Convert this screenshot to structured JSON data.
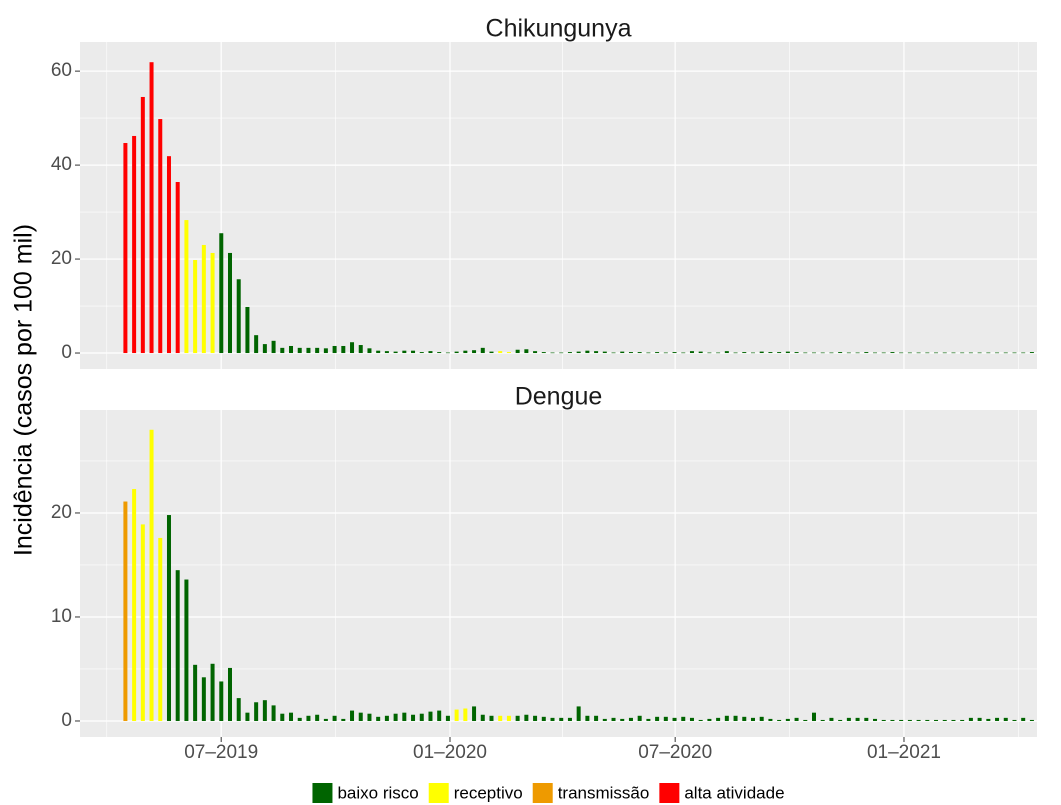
{
  "chart_data": {
    "type": "faceted-bar",
    "ylabel": "Incidência (casos por 100 mil)",
    "legend": [
      {
        "name": "baixo risco",
        "color": "#006400"
      },
      {
        "name": "receptivo",
        "color": "#ffff00"
      },
      {
        "name": "transmissão",
        "color": "#ee9a00"
      },
      {
        "name": "alta atividade",
        "color": "#ff0000"
      }
    ],
    "x": [
      2019.285,
      2019.3042,
      2019.3234,
      2019.3426,
      2019.3618,
      2019.381,
      2019.4002,
      2019.4194,
      2019.4386,
      2019.4578,
      2019.477,
      2019.4962,
      2019.5154,
      2019.5346,
      2019.5538,
      2019.573,
      2019.5922,
      2019.6114,
      2019.6306,
      2019.6498,
      2019.669,
      2019.6882,
      2019.7074,
      2019.7266,
      2019.7458,
      2019.765,
      2019.7842,
      2019.8034,
      2019.8226,
      2019.8418,
      2019.861,
      2019.8802,
      2019.8994,
      2019.9186,
      2019.9378,
      2019.957,
      2019.9762,
      2019.9954,
      2020.0146,
      2020.0338,
      2020.053,
      2020.0722,
      2020.0914,
      2020.1106,
      2020.1298,
      2020.149,
      2020.1682,
      2020.1874,
      2020.2066,
      2020.2258,
      2020.245,
      2020.2642,
      2020.2834,
      2020.3026,
      2020.3218,
      2020.341,
      2020.3602,
      2020.3794,
      2020.3986,
      2020.4178,
      2020.437,
      2020.4562,
      2020.4754,
      2020.4946,
      2020.5138,
      2020.533,
      2020.5522,
      2020.5714,
      2020.5906,
      2020.6098,
      2020.629,
      2020.6482,
      2020.6674,
      2020.6866,
      2020.7058,
      2020.725,
      2020.7442,
      2020.7634,
      2020.7826,
      2020.8018,
      2020.821,
      2020.8402,
      2020.8594,
      2020.8786,
      2020.8978,
      2020.917,
      2020.9362,
      2020.9554,
      2020.9746,
      2020.9938,
      2021.013,
      2021.0322,
      2021.0514,
      2021.0706,
      2021.0898,
      2021.109,
      2021.1282,
      2021.1474,
      2021.1666,
      2021.1858,
      2021.205,
      2021.2242,
      2021.2434,
      2021.2626,
      2021.2818
    ],
    "xlim": [
      2019.185,
      2021.293
    ],
    "xticks": [
      {
        "value": 2019.496,
        "label": "07–2019"
      },
      {
        "value": 2020.0,
        "label": "01–2020"
      },
      {
        "value": 2020.496,
        "label": "07–2020"
      },
      {
        "value": 2021.0,
        "label": "01–2021"
      }
    ],
    "grid": true,
    "panels": [
      {
        "title": "Chikungunya",
        "ylim": [
          -3.4,
          66.2
        ],
        "yticks": [
          0,
          20,
          40,
          60
        ],
        "values": [
          44.7,
          46.2,
          54.5,
          61.9,
          49.8,
          41.9,
          36.4,
          28.3,
          19.8,
          23.0,
          21.3,
          25.5,
          21.3,
          15.7,
          9.8,
          3.8,
          1.9,
          2.6,
          1.1,
          1.5,
          1.1,
          1.1,
          1.1,
          1.0,
          1.5,
          1.5,
          2.3,
          1.7,
          1.0,
          0.5,
          0.4,
          0.3,
          0.5,
          0.5,
          0.2,
          0.4,
          0.2,
          0.1,
          0.3,
          0.5,
          0.6,
          1.1,
          0.3,
          0.4,
          0.2,
          0.7,
          0.8,
          0.4,
          0.2,
          0.1,
          0.1,
          0.2,
          0.3,
          0.5,
          0.4,
          0.3,
          0.1,
          0.3,
          0.2,
          0.2,
          0.1,
          0.2,
          0.1,
          0.2,
          0.1,
          0.4,
          0.3,
          0.1,
          0.1,
          0.4,
          0.1,
          0.2,
          0.1,
          0.3,
          0.2,
          0.2,
          0.3,
          0.2,
          0.1,
          0.1,
          0.1,
          0.1,
          0.2,
          0.1,
          0.1,
          0.2,
          0.1,
          0.1,
          0.2,
          0.1,
          0.1,
          0.1,
          0.1,
          0.1,
          0.1,
          0.1,
          0.1,
          0.1,
          0.1,
          0.1,
          0.1,
          0.1,
          0.1,
          0.1,
          0.2
        ],
        "levels": [
          3,
          3,
          3,
          3,
          3,
          3,
          3,
          1,
          1,
          1,
          1,
          0,
          0,
          0,
          0,
          0,
          0,
          0,
          0,
          0,
          0,
          0,
          0,
          0,
          0,
          0,
          0,
          0,
          0,
          0,
          0,
          0,
          0,
          0,
          0,
          0,
          0,
          0,
          0,
          0,
          0,
          0,
          0,
          1,
          1,
          0,
          0,
          0,
          0,
          0,
          0,
          0,
          0,
          0,
          0,
          0,
          0,
          0,
          0,
          0,
          0,
          0,
          0,
          0,
          0,
          0,
          0,
          0,
          0,
          0,
          0,
          0,
          0,
          0,
          0,
          0,
          0,
          0,
          0,
          0,
          0,
          0,
          0,
          0,
          0,
          0,
          0,
          0,
          0,
          0,
          0,
          0,
          0,
          0,
          0,
          0,
          0,
          0,
          0,
          0,
          0,
          0,
          0,
          0,
          0
        ]
      },
      {
        "title": "Dengue",
        "ylim": [
          -1.54,
          29.9
        ],
        "yticks": [
          0,
          10,
          20
        ],
        "values": [
          21.1,
          22.3,
          18.9,
          28.0,
          17.6,
          19.8,
          14.5,
          13.6,
          5.4,
          4.2,
          5.5,
          3.8,
          5.1,
          2.2,
          0.8,
          1.8,
          2.0,
          1.5,
          0.7,
          0.8,
          0.3,
          0.5,
          0.6,
          0.2,
          0.5,
          0.2,
          1.0,
          0.8,
          0.7,
          0.4,
          0.5,
          0.7,
          0.8,
          0.6,
          0.7,
          0.9,
          1.0,
          0.5,
          1.1,
          1.2,
          1.4,
          0.6,
          0.5,
          0.5,
          0.5,
          0.5,
          0.6,
          0.5,
          0.4,
          0.3,
          0.3,
          0.3,
          1.4,
          0.5,
          0.5,
          0.2,
          0.3,
          0.2,
          0.3,
          0.5,
          0.2,
          0.4,
          0.4,
          0.3,
          0.4,
          0.3,
          0.1,
          0.2,
          0.3,
          0.5,
          0.5,
          0.4,
          0.3,
          0.4,
          0.2,
          0.1,
          0.2,
          0.3,
          0.1,
          0.8,
          0.1,
          0.3,
          0.1,
          0.3,
          0.3,
          0.3,
          0.2,
          0.1,
          0.1,
          0.1,
          0.1,
          0.1,
          0.1,
          0.1,
          0.1,
          0.1,
          0.1,
          0.3,
          0.3,
          0.2,
          0.3,
          0.3,
          0.1,
          0.3,
          0.1
        ],
        "levels": [
          2,
          1,
          1,
          1,
          1,
          0,
          0,
          0,
          0,
          0,
          0,
          0,
          0,
          0,
          0,
          0,
          0,
          0,
          0,
          0,
          0,
          0,
          0,
          0,
          0,
          0,
          0,
          0,
          0,
          0,
          0,
          0,
          0,
          0,
          0,
          0,
          0,
          0,
          1,
          1,
          0,
          0,
          0,
          1,
          1,
          0,
          0,
          0,
          0,
          0,
          0,
          0,
          0,
          0,
          0,
          0,
          0,
          0,
          0,
          0,
          0,
          0,
          0,
          0,
          0,
          0,
          0,
          0,
          0,
          0,
          0,
          0,
          0,
          0,
          0,
          0,
          0,
          0,
          0,
          0,
          0,
          0,
          0,
          0,
          0,
          0,
          0,
          0,
          0,
          0,
          0,
          0,
          0,
          0,
          0,
          0,
          0,
          0,
          0,
          0,
          0,
          0,
          0,
          0,
          0
        ]
      }
    ]
  }
}
